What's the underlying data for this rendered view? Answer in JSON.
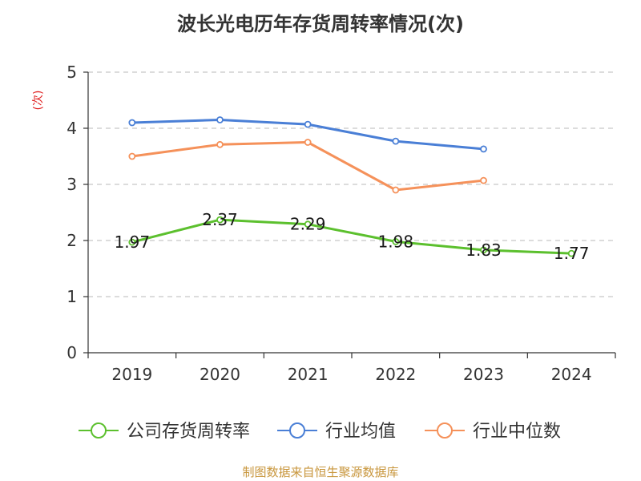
{
  "chart_data": {
    "type": "line",
    "title": "波长光电历年存货周转率情况(次)",
    "ylabel": "(次)",
    "xlabel": "",
    "categories": [
      "2019",
      "2020",
      "2021",
      "2022",
      "2023",
      "2024"
    ],
    "ylim": [
      0,
      5
    ],
    "yticks": [
      "0",
      "1",
      "2",
      "3",
      "4",
      "5"
    ],
    "grid": true,
    "legend_position": "bottom",
    "series": [
      {
        "name": "公司存货周转率",
        "color": "#5cc02e",
        "values": [
          1.97,
          2.37,
          2.29,
          1.98,
          1.83,
          1.77
        ],
        "labels": [
          "1.97",
          "2.37",
          "2.29",
          "1.98",
          "1.83",
          "1.77"
        ]
      },
      {
        "name": "行业均值",
        "color": "#4a7fd6",
        "values": [
          4.1,
          4.15,
          4.07,
          3.77,
          3.63,
          null
        ]
      },
      {
        "name": "行业中位数",
        "color": "#f5915a",
        "values": [
          3.5,
          3.71,
          3.75,
          2.9,
          3.07,
          null
        ]
      }
    ]
  },
  "source": "制图数据来自恒生聚源数据库"
}
